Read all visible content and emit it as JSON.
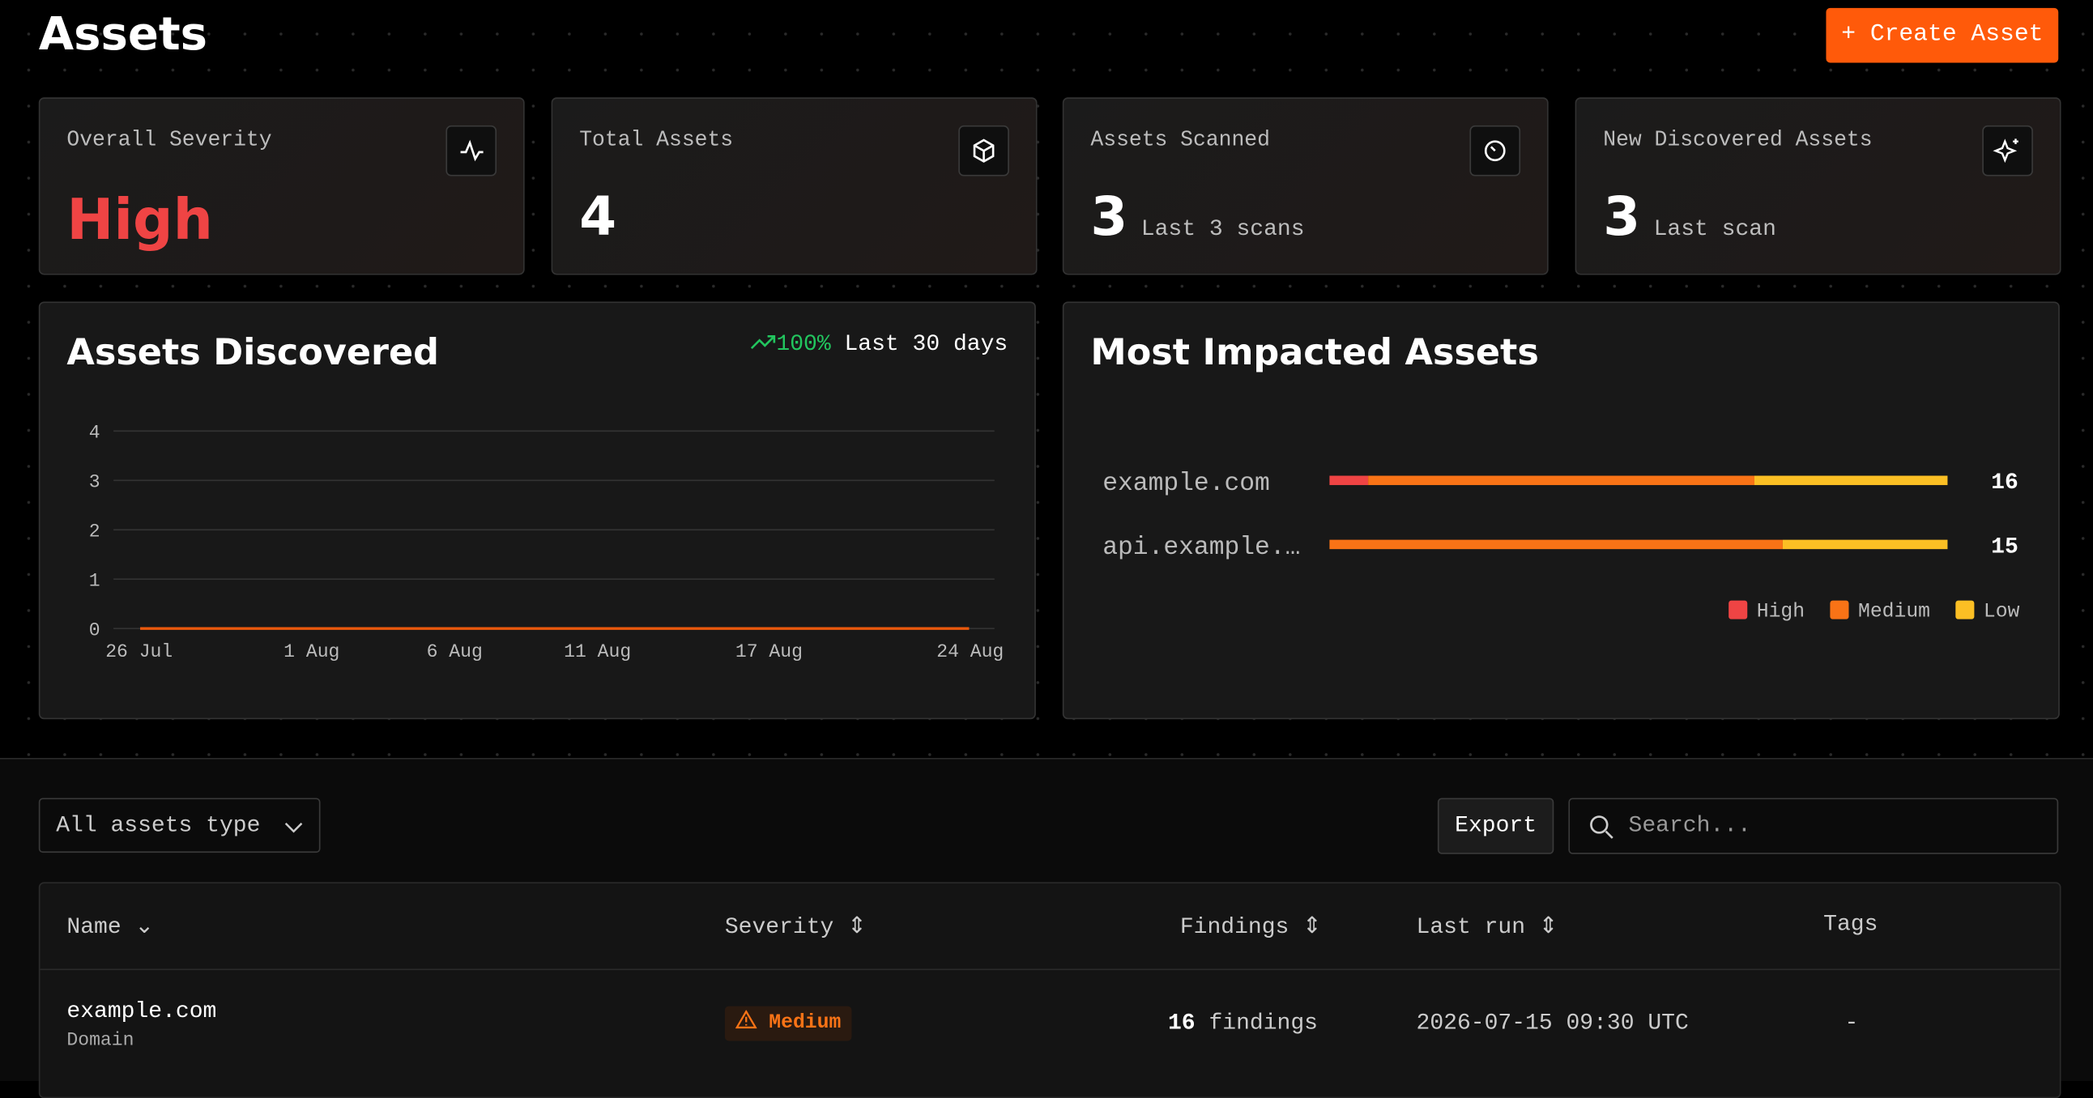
{
  "header": {
    "title": "Assets",
    "create_button": "+ Create Asset"
  },
  "stats": [
    {
      "label": "Overall Severity",
      "value": "High"
    },
    {
      "label": "Total Assets",
      "value": 4
    },
    {
      "label": "Assets Scanned",
      "value": 3,
      "note": "Last 3 scans"
    },
    {
      "label": "New Discovered Assets",
      "value": 3,
      "note": "Last scan"
    }
  ],
  "chart_data": [
    {
      "type": "line",
      "title": "Assets Discovered",
      "trend": "100%",
      "trend_period": "Last 30 days",
      "x": [
        "26 Jul",
        "1 Aug",
        "6 Aug",
        "11 Aug",
        "17 Aug",
        "24 Aug"
      ],
      "values": [
        0,
        0,
        0,
        0,
        0,
        0
      ],
      "color": "#ea580c",
      "ylim": [
        0,
        4
      ],
      "yticks": [
        0,
        1,
        2,
        3,
        4
      ],
      "grid": true
    },
    {
      "type": "stacked-bar",
      "orientation": "horizontal",
      "title": "Most Impacted Assets",
      "categories": [
        "example.com",
        "api.example.…"
      ],
      "series": [
        {
          "name": "High",
          "color": "#ef4444",
          "values": [
            1,
            0
          ]
        },
        {
          "name": "Medium",
          "color": "#f97316",
          "values": [
            10,
            11
          ]
        },
        {
          "name": "Low",
          "color": "#fbbf24",
          "values": [
            5,
            4
          ]
        }
      ],
      "totals": [
        16,
        15
      ],
      "legend": "bottom-right"
    }
  ],
  "toolbar": {
    "filter": "All assets type",
    "export": "Export",
    "search_placeholder": "Search..."
  },
  "table": {
    "columns": [
      "Name",
      "Severity",
      "Findings",
      "Last run",
      "Tags"
    ],
    "rows": [
      {
        "name": "example.com",
        "type": "Domain",
        "severity": "Medium",
        "findings": 16,
        "findings_unit": "findings",
        "last_run": "2026-07-15 09:30 UTC",
        "tags": "-"
      }
    ]
  }
}
